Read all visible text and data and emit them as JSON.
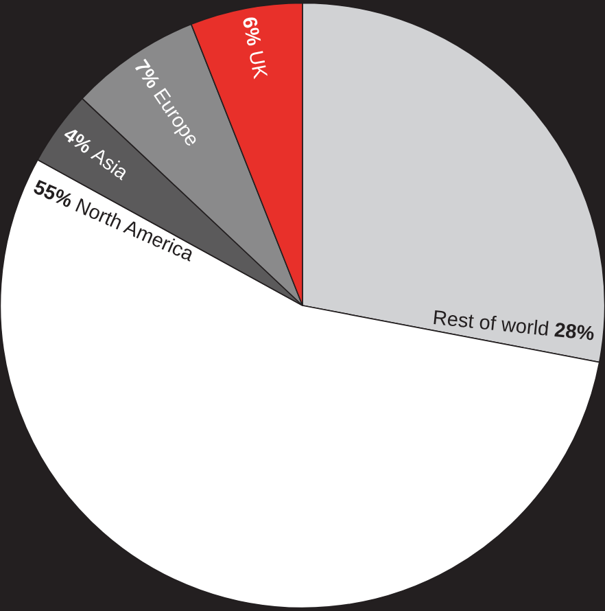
{
  "chart_data": {
    "type": "pie",
    "categories": [
      "Rest of world",
      "North America",
      "Asia",
      "Europe",
      "UK"
    ],
    "values": [
      28,
      55,
      4,
      7,
      6
    ],
    "colors": [
      "#d1d2d4",
      "#ffffff",
      "#5b5a5b",
      "#8a8a8b",
      "#e8302a"
    ],
    "value_labels": [
      "28%",
      "55%",
      "4%",
      "7%",
      "6%"
    ]
  }
}
